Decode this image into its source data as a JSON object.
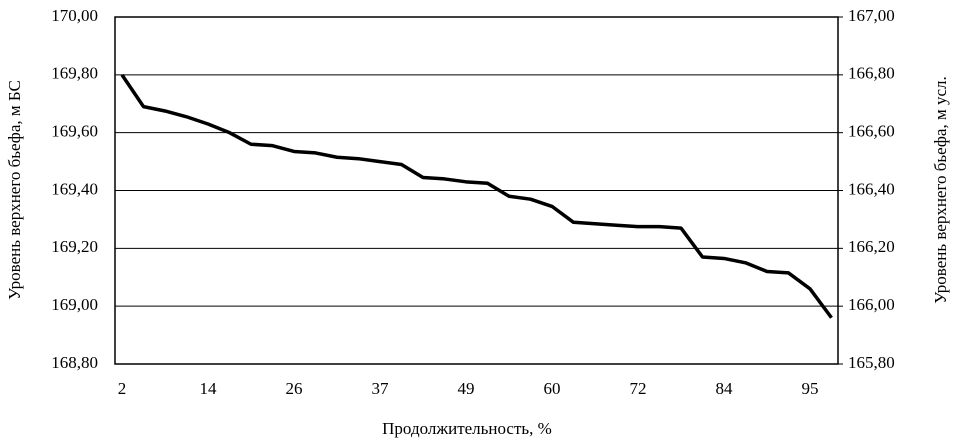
{
  "chart_data": {
    "type": "line",
    "x_label": "Продолжительность, %",
    "y_label": "Уровень верхнего бьефа, м БС",
    "y2_label": "Уровень верхнего бьефа, м  усл.",
    "categories": [
      "2",
      null,
      null,
      null,
      "14",
      null,
      null,
      null,
      "26",
      null,
      null,
      null,
      "37",
      null,
      null,
      null,
      "49",
      null,
      null,
      null,
      "60",
      null,
      null,
      null,
      "72",
      null,
      null,
      null,
      "84",
      null,
      null,
      null,
      "95",
      null
    ],
    "series": [
      {
        "color": "#000000",
        "values": [
          169.8,
          169.69,
          169.675,
          169.655,
          169.63,
          169.6,
          169.56,
          169.555,
          169.535,
          169.53,
          169.515,
          169.51,
          169.5,
          169.49,
          169.445,
          169.44,
          169.43,
          169.425,
          169.38,
          169.37,
          169.345,
          169.29,
          169.285,
          169.28,
          169.275,
          169.275,
          169.27,
          169.17,
          169.165,
          169.15,
          169.12,
          169.115,
          169.06,
          168.96
        ]
      }
    ],
    "ylim": [
      168.8,
      170.0
    ],
    "yticks": [
      {
        "value": 168.8,
        "label": "168,80"
      },
      {
        "value": 169.0,
        "label": "169,00"
      },
      {
        "value": 169.2,
        "label": "169,20"
      },
      {
        "value": 169.4,
        "label": "169,40"
      },
      {
        "value": 169.6,
        "label": "169,60"
      },
      {
        "value": 169.8,
        "label": "169,80"
      },
      {
        "value": 170.0,
        "label": "170,00"
      }
    ],
    "y2lim": [
      165.8,
      167.0
    ],
    "y2ticks": [
      {
        "value": 165.8,
        "label": "165,80"
      },
      {
        "value": 166.0,
        "label": "166,00"
      },
      {
        "value": 166.2,
        "label": "166,20"
      },
      {
        "value": 166.4,
        "label": "166,40"
      },
      {
        "value": 166.6,
        "label": "166,60"
      },
      {
        "value": 166.8,
        "label": "166,80"
      },
      {
        "value": 167.0,
        "label": "167,00"
      }
    ],
    "grid": true
  }
}
